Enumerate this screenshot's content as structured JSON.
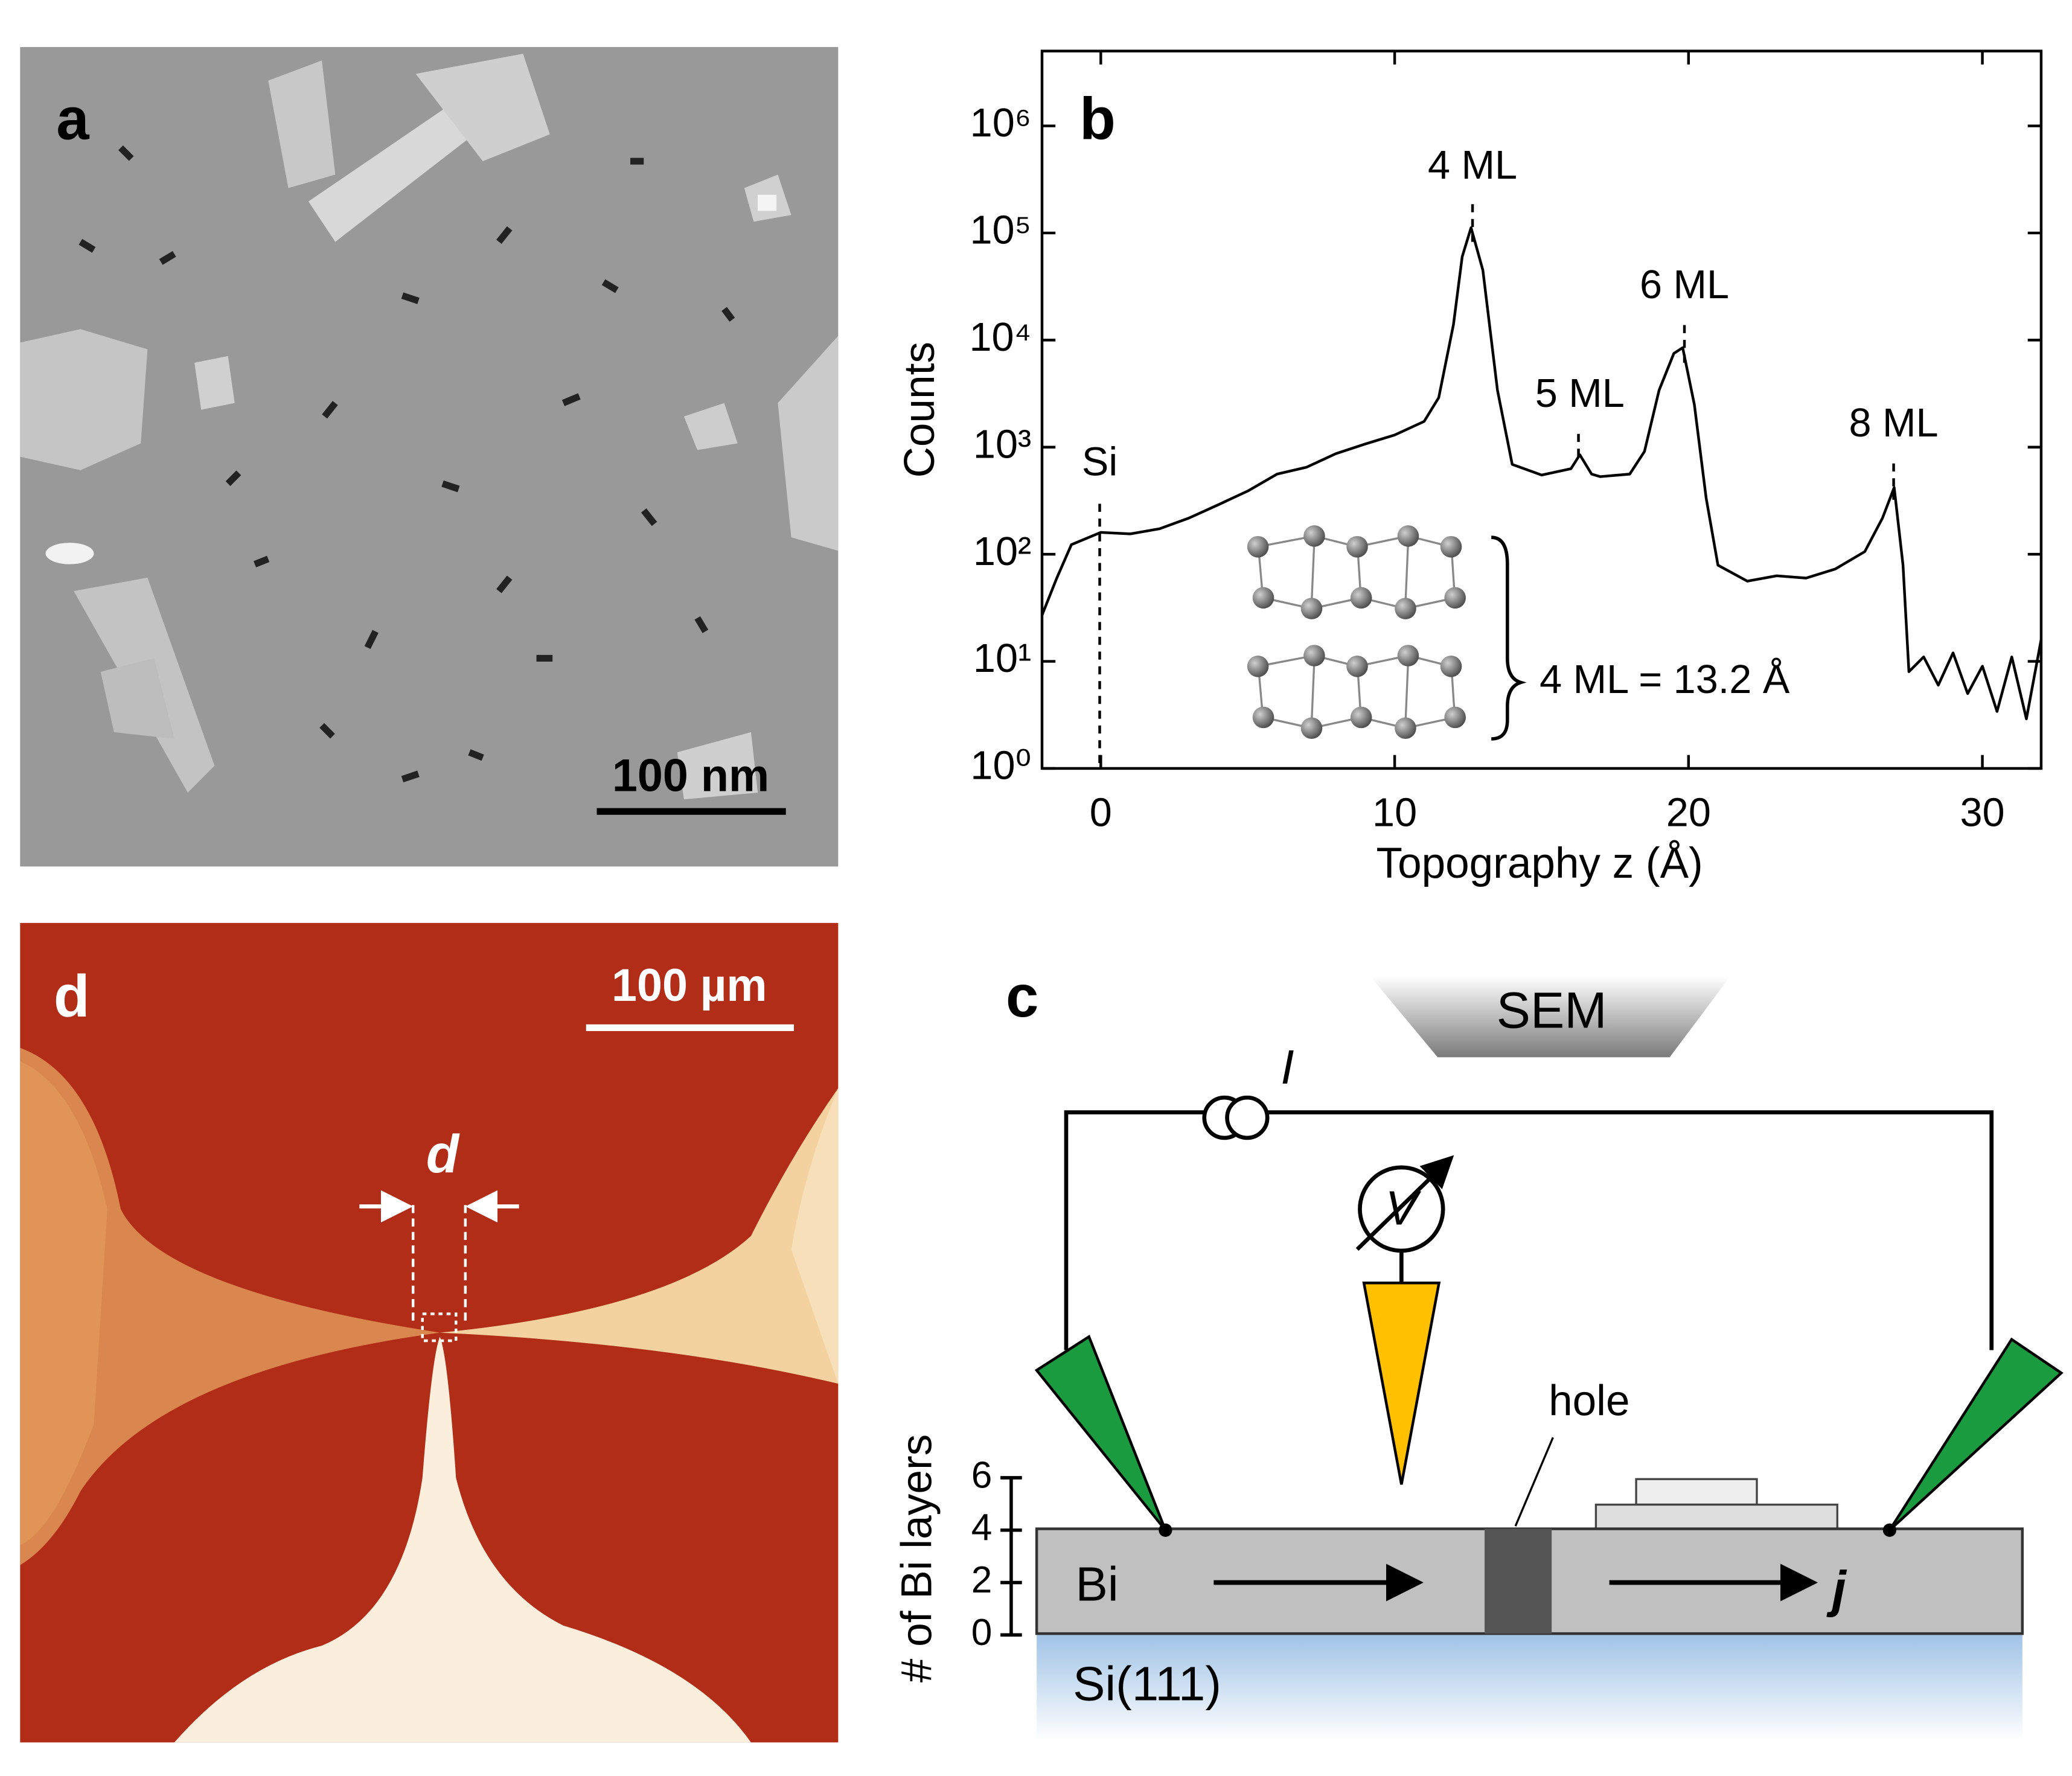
{
  "chart_data": {
    "type": "line",
    "panel_label": "b",
    "x_label": "Topography z (Å)",
    "y_label": "Counts",
    "y_scale": "log",
    "color": "#000000",
    "xlim": [
      -2,
      32
    ],
    "xticks": [
      0,
      10,
      20,
      30
    ],
    "ylim": [
      1,
      5000000
    ],
    "yticks": [
      {
        "value": 1,
        "label": "10⁰"
      },
      {
        "value": 10,
        "label": "10¹"
      },
      {
        "value": 100,
        "label": "10²"
      },
      {
        "value": 1000,
        "label": "10³"
      },
      {
        "value": 10000,
        "label": "10⁴"
      },
      {
        "value": 100000,
        "label": "10⁵"
      },
      {
        "value": 1000000,
        "label": "10⁶"
      }
    ],
    "x": [
      -2,
      -1.5,
      -1,
      0,
      1,
      2,
      3,
      4,
      5,
      6,
      7,
      8,
      9,
      10,
      11,
      11.5,
      12,
      12.3,
      12.6,
      13,
      13.5,
      14,
      15,
      16,
      16.3,
      16.7,
      17,
      18,
      18.5,
      19,
      19.5,
      19.8,
      20.2,
      20.6,
      21,
      22,
      23,
      24,
      25,
      26,
      26.6,
      27,
      27.3,
      27.5,
      28,
      28.5,
      29,
      29.5,
      30,
      30.5,
      31,
      31.5,
      32
    ],
    "values": [
      27,
      60,
      123,
      160,
      155,
      173,
      218,
      290,
      390,
      560,
      650,
      870,
      1070,
      1300,
      1740,
      2900,
      14000,
      60000,
      112000,
      45000,
      3400,
      690,
      550,
      630,
      850,
      560,
      530,
      560,
      910,
      3400,
      7500,
      8500,
      2500,
      335,
      79,
      56,
      63,
      60,
      73,
      106,
      218,
      420,
      79,
      8,
      11,
      6,
      12,
      5,
      9,
      3.4,
      11,
      2.9,
      16
    ],
    "annotations": [
      "Si",
      "4 ML",
      "5 ML",
      "6 ML",
      "8 ML",
      "4 ML = 13.2 Å"
    ]
  },
  "panel_a": {
    "label": "a",
    "scale_bar": "100 nm"
  },
  "panel_c": {
    "label": "c",
    "source": "SEM",
    "current": "I",
    "voltmeter": "V",
    "hole": "hole",
    "bi": "Bi",
    "current_density": "j",
    "substrate": "Si(111)",
    "axis_label": "# of Bi layers",
    "layer_ticks": [
      "0",
      "2",
      "4",
      "6"
    ]
  },
  "panel_d": {
    "label": "d",
    "scale_bar": "100 µm",
    "distance": "d"
  }
}
